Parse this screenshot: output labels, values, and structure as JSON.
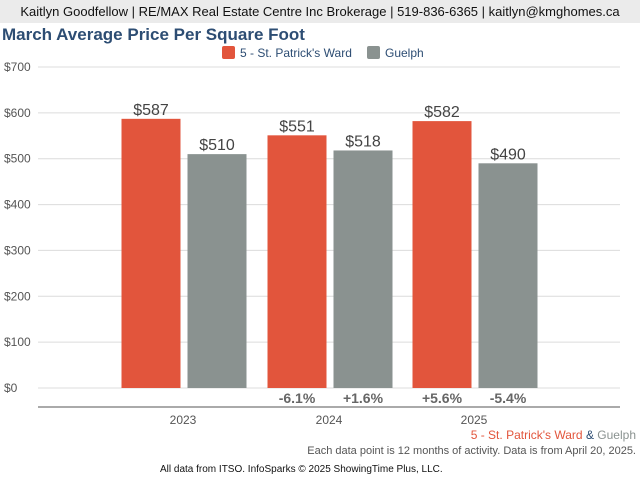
{
  "header": {
    "contact": "Kaitlyn Goodfellow | RE/MAX Real Estate Centre Inc Brokerage | 519-836-6365 | kaitlyn@kmghomes.ca"
  },
  "chart_data": {
    "type": "bar",
    "title": "March Average Price Per Square Foot",
    "categories": [
      "2023",
      "2024",
      "2025"
    ],
    "series": [
      {
        "name": "5 - St. Patrick's Ward",
        "color": "#e2553c",
        "values": [
          587,
          551,
          582
        ],
        "labels": [
          "$587",
          "$551",
          "$582"
        ],
        "changes": [
          "",
          "-6.1%",
          "+5.6%"
        ]
      },
      {
        "name": "Guelph",
        "color": "#8a9290",
        "values": [
          510,
          518,
          490
        ],
        "labels": [
          "$510",
          "$518",
          "$490"
        ],
        "changes": [
          "",
          "+1.6%",
          "-5.4%"
        ]
      }
    ],
    "ylim": [
      0,
      700
    ],
    "yticks": [
      0,
      100,
      200,
      300,
      400,
      500,
      600,
      700
    ],
    "ytick_labels": [
      "$0",
      "$100",
      "$200",
      "$300",
      "$400",
      "$500",
      "$600",
      "$700"
    ],
    "legend": "top-center",
    "grid": true
  },
  "footer": {
    "area": "5 - St. Patrick's Ward",
    "amp": "&",
    "region": "Guelph",
    "note": "Each data point is 12 months of activity. Data is from April 20, 2025.",
    "source": "All data from ITSO. InfoSparks © 2025 ShowingTime Plus, LLC."
  }
}
